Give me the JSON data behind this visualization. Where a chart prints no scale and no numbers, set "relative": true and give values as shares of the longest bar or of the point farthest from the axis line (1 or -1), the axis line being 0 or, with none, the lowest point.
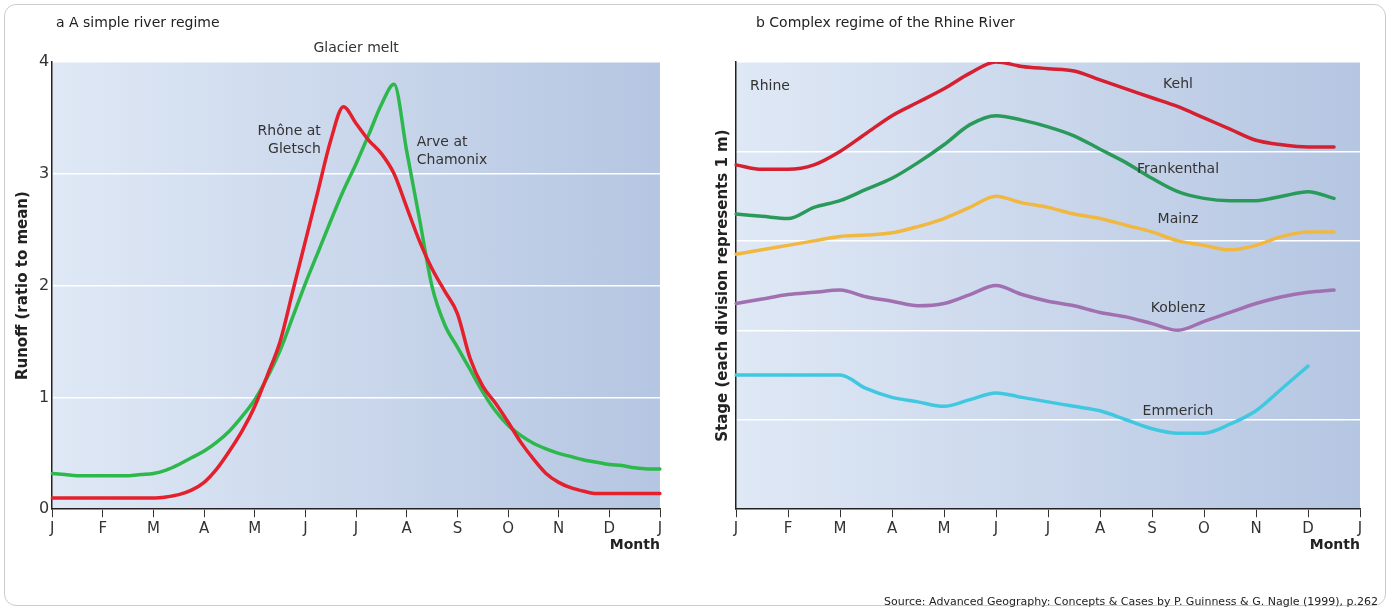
{
  "chart_data": [
    {
      "type": "line",
      "title": "a A simple river regime",
      "ylabel": "Runoff (ratio to mean)",
      "xlabel": "Month",
      "annotations": [
        "Glacier melt"
      ],
      "categories": [
        "J",
        null,
        null,
        null,
        "F",
        null,
        null,
        null,
        "M",
        null,
        null,
        null,
        "A",
        null,
        null,
        null,
        "M",
        null,
        null,
        null,
        "J",
        null,
        null,
        null,
        "J",
        null,
        null,
        null,
        "A",
        null,
        null,
        null,
        "S",
        null,
        null,
        null,
        "O",
        null,
        null,
        null,
        "N",
        null,
        null,
        null,
        "D",
        null,
        null,
        null,
        "J"
      ],
      "ylim": [
        0,
        4
      ],
      "yticks": [
        0,
        1,
        2,
        3,
        4
      ],
      "grid": "y",
      "series": [
        {
          "name": "Rhône at Gletsch",
          "color": "#e3202c",
          "values": [
            0.1,
            0.1,
            0.1,
            0.1,
            0.1,
            0.1,
            0.1,
            0.1,
            0.1,
            0.11,
            0.13,
            0.17,
            0.24,
            0.36,
            0.52,
            0.7,
            0.92,
            1.2,
            1.5,
            1.95,
            2.4,
            2.85,
            3.3,
            3.6,
            3.45,
            3.3,
            3.18,
            3.0,
            2.7,
            2.4,
            2.15,
            1.95,
            1.75,
            1.35,
            1.1,
            0.95,
            0.78,
            0.6,
            0.45,
            0.32,
            0.24,
            0.19,
            0.16,
            0.14,
            0.14,
            0.14,
            0.14,
            0.14,
            0.14
          ]
        },
        {
          "name": "Arve at Chamonix",
          "color": "#2db84c",
          "values": [
            0.32,
            0.31,
            0.3,
            0.3,
            0.3,
            0.3,
            0.3,
            0.31,
            0.32,
            0.35,
            0.4,
            0.46,
            0.52,
            0.6,
            0.7,
            0.83,
            0.98,
            1.18,
            1.42,
            1.72,
            2.02,
            2.3,
            2.58,
            2.85,
            3.09,
            3.35,
            3.62,
            3.8,
            3.2,
            2.6,
            1.99,
            1.65,
            1.45,
            1.25,
            1.05,
            0.88,
            0.75,
            0.66,
            0.59,
            0.54,
            0.5,
            0.47,
            0.44,
            0.42,
            0.4,
            0.39,
            0.37,
            0.36,
            0.36
          ]
        }
      ]
    },
    {
      "type": "line",
      "title": "b Complex regime of the Rhine River",
      "ylabel": "Stage (each division represents 1 m)",
      "xlabel": "Month",
      "annotations": [
        "Rhine",
        "Source: Advanced Geography: Concepts & Cases by P. Guinness & G. Nagle (1999), p.262"
      ],
      "categories": [
        "J",
        null,
        "F",
        null,
        "M",
        null,
        "A",
        null,
        "M",
        null,
        "J",
        null,
        "J",
        null,
        "A",
        null,
        "S",
        null,
        "O",
        null,
        "N",
        null,
        "D",
        null,
        "J"
      ],
      "relative": true,
      "grid": "y",
      "series": [
        {
          "name": "Kehl",
          "color": "#d42030",
          "values": [
            0.77,
            0.76,
            0.76,
            0.77,
            0.8,
            0.84,
            0.88,
            0.91,
            0.94,
            0.975,
            1,
            0.99,
            0.985,
            0.98,
            0.96,
            0.94,
            0.92,
            0.9,
            0.875,
            0.85,
            0.825,
            0.815,
            0.81,
            0.81,
            null
          ]
        },
        {
          "name": "Frankenthal",
          "color": "#2a9a5a",
          "values": [
            0.66,
            0.655,
            0.65,
            0.675,
            0.69,
            0.715,
            0.74,
            0.775,
            0.815,
            0.86,
            0.88,
            0.87,
            0.855,
            0.835,
            0.805,
            0.775,
            0.74,
            0.71,
            0.695,
            0.69,
            0.69,
            0.7,
            0.71,
            0.695,
            null
          ]
        },
        {
          "name": "Mainz",
          "color": "#f0b840",
          "values": [
            0.57,
            0.58,
            0.59,
            0.6,
            0.61,
            0.613,
            0.618,
            0.632,
            0.65,
            0.675,
            0.7,
            0.685,
            0.675,
            0.66,
            0.65,
            0.635,
            0.62,
            0.6,
            0.59,
            0.58,
            0.59,
            0.61,
            0.62,
            0.62,
            null
          ]
        },
        {
          "name": "Koblenz",
          "color": "#a070b0",
          "values": [
            0.46,
            0.47,
            0.48,
            0.485,
            0.49,
            0.475,
            0.465,
            0.455,
            0.46,
            0.48,
            0.5,
            0.48,
            0.465,
            0.455,
            0.44,
            0.43,
            0.415,
            0.4,
            0.42,
            0.44,
            0.46,
            0.475,
            0.485,
            0.49,
            null
          ]
        },
        {
          "name": "Emmerich",
          "color": "#40c8e0",
          "values": [
            0.3,
            0.3,
            0.3,
            0.3,
            0.3,
            0.27,
            0.25,
            0.24,
            0.23,
            0.245,
            0.26,
            0.25,
            0.24,
            0.23,
            0.22,
            0.2,
            0.18,
            0.17,
            0.17,
            0.19,
            0.22,
            0.27,
            0.32,
            null,
            null
          ]
        }
      ]
    }
  ]
}
